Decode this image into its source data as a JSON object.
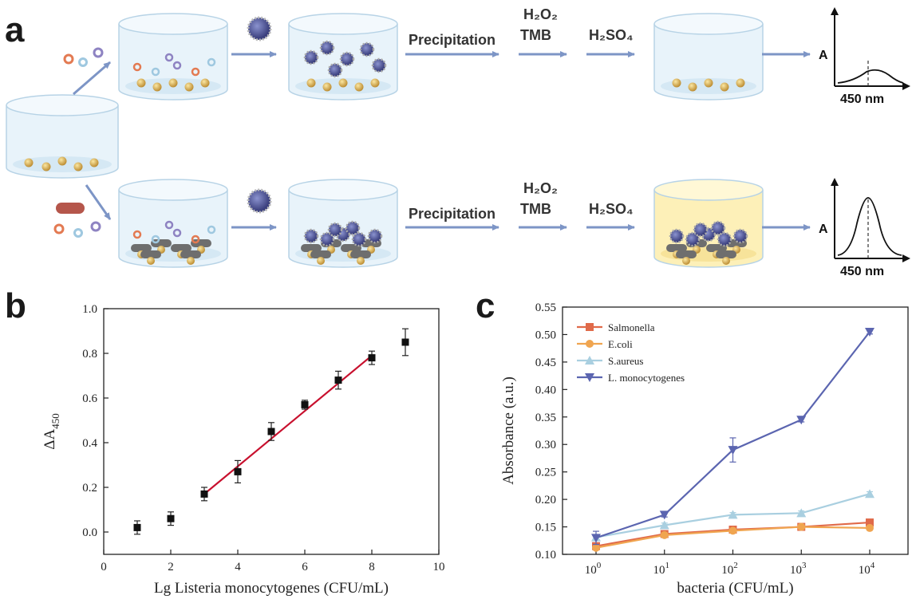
{
  "panel_a": {
    "letter": "a",
    "precip_label": "Precipitation",
    "reagent1_label": "H₂O₂",
    "reagent2_label": "TMB",
    "acid_label": "H₂SO₄",
    "spectrum_ylabel": "A",
    "spectrum_xlabel": "450  nm",
    "colors": {
      "arrow": "#7d95c6",
      "beaker_fill": "#e8f3fa",
      "beaker_edge": "#b7d3e6",
      "positive_fill": "#fdf0b8",
      "nanozyme": "#4a4f8e"
    }
  },
  "chart_data": [
    {
      "panel": "b",
      "type": "scatter",
      "letter": "b",
      "xlabel": "Lg Listeria monocytogenes (CFU/mL)",
      "ylabel_main": "ΔA",
      "ylabel_sub": "450",
      "xlim": [
        0,
        10
      ],
      "ylim": [
        -0.1,
        1.0
      ],
      "xticks": [
        "0",
        "2",
        "4",
        "6",
        "8",
        "10"
      ],
      "yticks": [
        "0.0",
        "0.2",
        "0.4",
        "0.6",
        "0.8",
        "1.0"
      ],
      "x": [
        1,
        2,
        3,
        4,
        5,
        6,
        7,
        8,
        9
      ],
      "y": [
        0.02,
        0.06,
        0.17,
        0.27,
        0.45,
        0.57,
        0.68,
        0.78,
        0.85
      ],
      "err": [
        0.03,
        0.03,
        0.03,
        0.05,
        0.04,
        0.02,
        0.04,
        0.03,
        0.06
      ],
      "fit": {
        "x": [
          3,
          8
        ],
        "y": [
          0.17,
          0.79
        ],
        "color": "#c8102e"
      }
    },
    {
      "panel": "c",
      "type": "line",
      "letter": "c",
      "xlabel": "bacteria (CFU/mL)",
      "ylabel": "Absorbance (a.u.)",
      "ylim": [
        0.1,
        0.55
      ],
      "yticks": [
        "0.10",
        "0.15",
        "0.20",
        "0.25",
        "0.30",
        "0.35",
        "0.40",
        "0.45",
        "0.50",
        "0.55"
      ],
      "categories": [
        "10^0",
        "10^1",
        "10^2",
        "10^3",
        "10^4"
      ],
      "tick_base": "10",
      "tick_exps": [
        "0",
        "1",
        "2",
        "3",
        "4"
      ],
      "series": [
        {
          "name": "Salmonella",
          "color": "#e06a4a",
          "marker": "square",
          "values": [
            0.115,
            0.137,
            0.145,
            0.15,
            0.158
          ],
          "err": [
            0.005,
            0.004,
            0.004,
            0.004,
            0.004
          ]
        },
        {
          "name": "E.coli",
          "color": "#f0a550",
          "marker": "circle",
          "values": [
            0.112,
            0.135,
            0.143,
            0.15,
            0.148
          ],
          "err": [
            0.004,
            0.004,
            0.004,
            0.004,
            0.004
          ]
        },
        {
          "name": "S.aureus",
          "color": "#a9cfe0",
          "marker": "triangle",
          "values": [
            0.131,
            0.153,
            0.172,
            0.175,
            0.21
          ],
          "err": [
            0.005,
            0.004,
            0.004,
            0.004,
            0.004
          ]
        },
        {
          "name": "L. monocytogenes",
          "color": "#5b65b0",
          "marker": "triangle-down",
          "values": [
            0.13,
            0.172,
            0.29,
            0.345,
            0.505
          ],
          "err": [
            0.012,
            0.004,
            0.022,
            0.004,
            0.004
          ]
        }
      ]
    }
  ]
}
